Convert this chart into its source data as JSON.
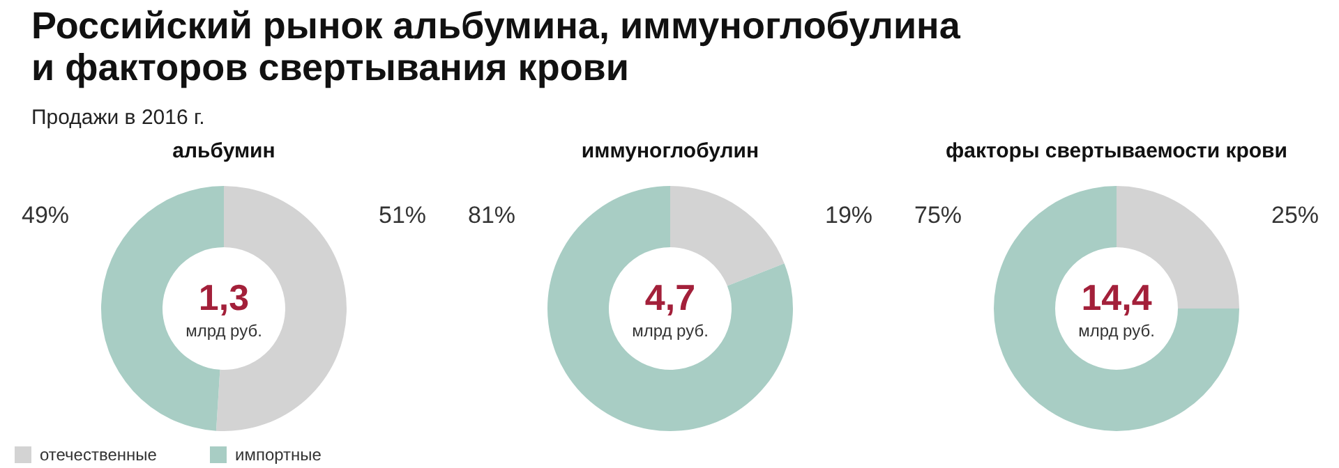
{
  "chart_data": [
    {
      "type": "donut",
      "title": "альбумин",
      "categories": [
        "отечественные",
        "импортные"
      ],
      "values": [
        51,
        49
      ],
      "colors": [
        "#d3d3d3",
        "#a8cdc4"
      ],
      "value_labels": [
        "51%",
        "49%"
      ],
      "legend": "bottom",
      "annotations": [
        "1,3",
        "млрд руб.",
        "Российский рынок альбумина, иммуноглобулина и факторов свертывания крови",
        "Продажи в 2016 г."
      ]
    },
    {
      "type": "donut",
      "title": "иммуноглобулин",
      "categories": [
        null,
        null
      ],
      "values": [
        19,
        81
      ],
      "colors": [
        "#d3d3d3",
        "#a8cdc4"
      ],
      "value_labels": [
        "19%",
        "81%"
      ],
      "annotations": [
        "4,7",
        "млрд руб."
      ]
    },
    {
      "type": "donut",
      "title": "факторы свертываемости крови",
      "categories": [
        null,
        null
      ],
      "values": [
        25,
        75
      ],
      "colors": [
        "#d3d3d3",
        "#a8cdc4"
      ],
      "value_labels": [
        "25%",
        "75%"
      ],
      "annotations": [
        "14,4",
        "млрд руб."
      ]
    }
  ]
}
